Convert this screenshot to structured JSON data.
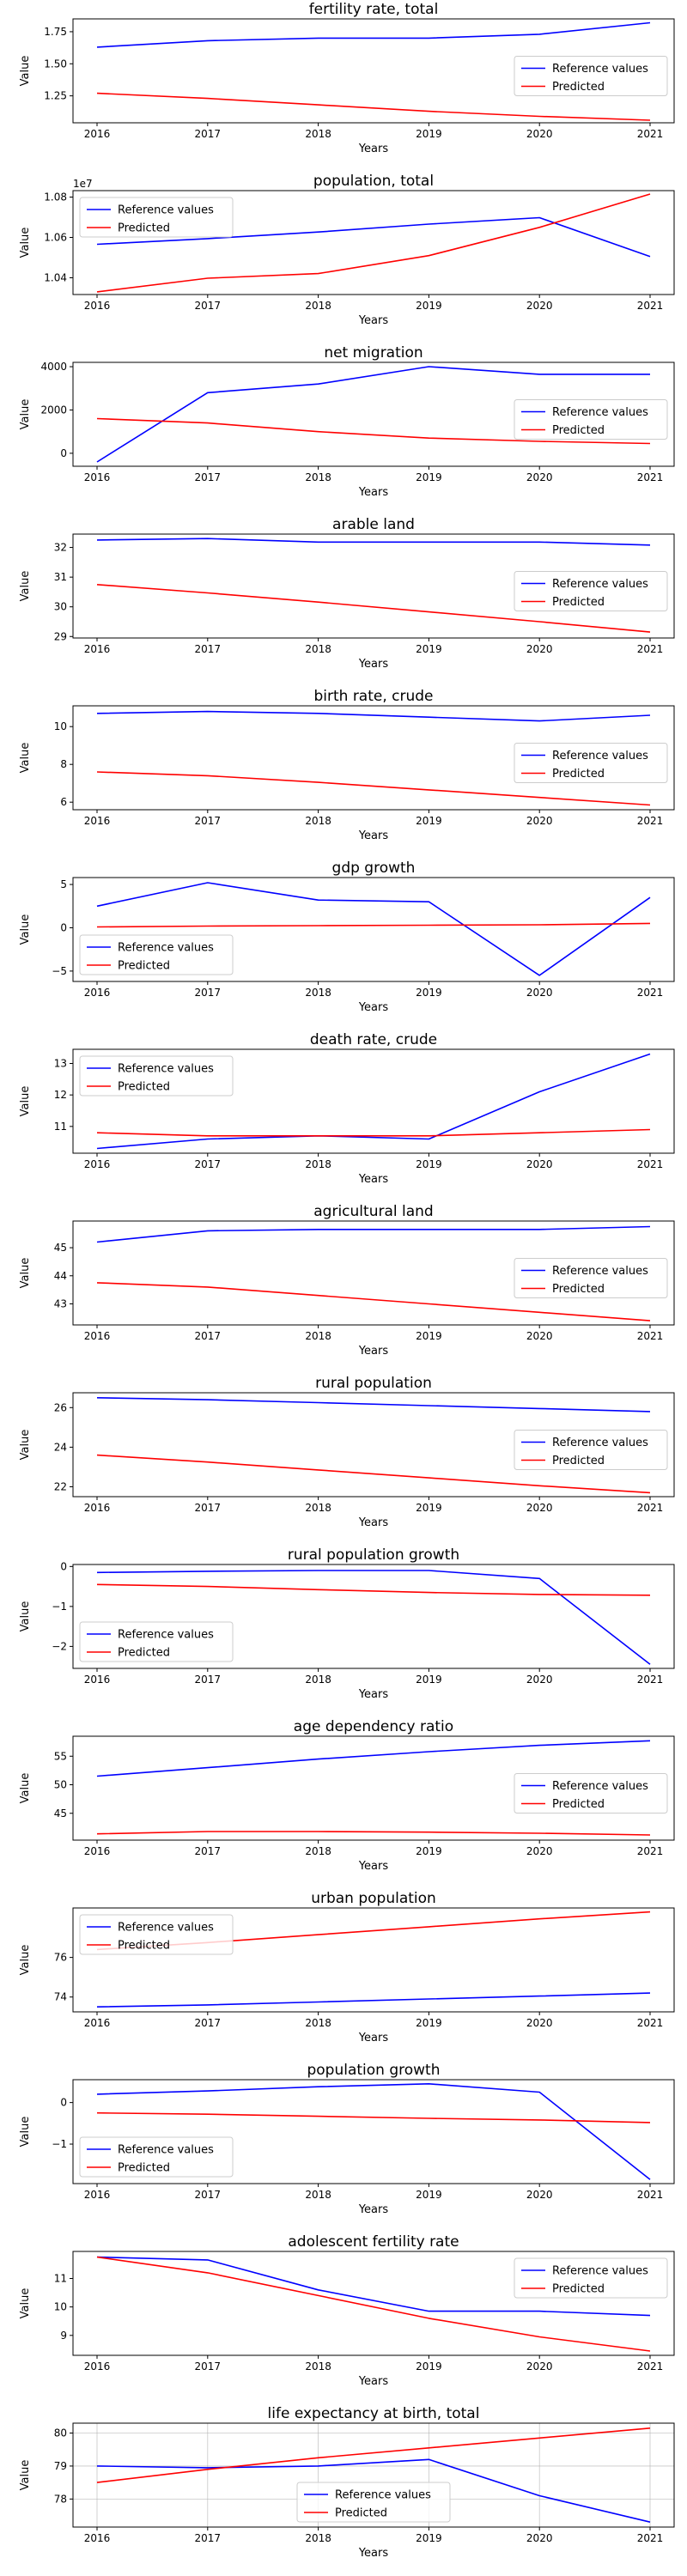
{
  "colors": {
    "reference": "#0000ff",
    "predicted": "#ff0000"
  },
  "chart_data": [
    {
      "type": "line",
      "title": "fertility rate, total",
      "xlabel": "Years",
      "ylabel": "Value",
      "x": [
        2016,
        2017,
        2018,
        2019,
        2020,
        2021
      ],
      "ylim": [
        1.04,
        1.85
      ],
      "yticks": [
        1.25,
        1.5,
        1.75
      ],
      "ytick_labels": [
        "1.25",
        "1.50",
        "1.75"
      ],
      "offset_text": "",
      "legend": "center-right",
      "grid": false,
      "series": [
        {
          "name": "Reference values",
          "color": "#0000ff",
          "values": [
            1.63,
            1.68,
            1.7,
            1.7,
            1.73,
            1.82
          ]
        },
        {
          "name": "Predicted",
          "color": "#ff0000",
          "values": [
            1.27,
            1.23,
            1.18,
            1.13,
            1.09,
            1.06
          ]
        }
      ]
    },
    {
      "type": "line",
      "title": "population, total",
      "xlabel": "Years",
      "ylabel": "Value",
      "x": [
        2016,
        2017,
        2018,
        2019,
        2020,
        2021
      ],
      "ylim": [
        10317000,
        10832000
      ],
      "yticks": [
        10400000,
        10600000,
        10800000
      ],
      "ytick_labels": [
        "1.04",
        "1.06",
        "1.08"
      ],
      "offset_text": "1e7",
      "legend": "upper-left",
      "grid": false,
      "series": [
        {
          "name": "Reference values",
          "color": "#0000ff",
          "values": [
            10566000,
            10594000,
            10627000,
            10666000,
            10698000,
            10505000
          ]
        },
        {
          "name": "Predicted",
          "color": "#ff0000",
          "values": [
            10330000,
            10398000,
            10421000,
            10510000,
            10650000,
            10815000
          ]
        }
      ]
    },
    {
      "type": "line",
      "title": "net migration",
      "xlabel": "Years",
      "ylabel": "Value",
      "x": [
        2016,
        2017,
        2018,
        2019,
        2020,
        2021
      ],
      "ylim": [
        -600,
        4200
      ],
      "yticks": [
        0,
        2000,
        4000
      ],
      "ytick_labels": [
        "0",
        "2000",
        "4000"
      ],
      "offset_text": "",
      "legend": "center-right",
      "grid": false,
      "series": [
        {
          "name": "Reference values",
          "color": "#0000ff",
          "values": [
            -400,
            2800,
            3200,
            4000,
            3650,
            3650
          ]
        },
        {
          "name": "Predicted",
          "color": "#ff0000",
          "values": [
            1600,
            1400,
            1000,
            700,
            550,
            450
          ]
        }
      ]
    },
    {
      "type": "line",
      "title": "arable land",
      "xlabel": "Years",
      "ylabel": "Value",
      "x": [
        2016,
        2017,
        2018,
        2019,
        2020,
        2021
      ],
      "ylim": [
        28.95,
        32.45
      ],
      "yticks": [
        29,
        30,
        31,
        32
      ],
      "ytick_labels": [
        "29",
        "30",
        "31",
        "32"
      ],
      "offset_text": "",
      "legend": "center-right",
      "grid": false,
      "series": [
        {
          "name": "Reference values",
          "color": "#0000ff",
          "values": [
            32.25,
            32.3,
            32.18,
            32.18,
            32.18,
            32.08
          ]
        },
        {
          "name": "Predicted",
          "color": "#ff0000",
          "values": [
            30.75,
            30.47,
            30.16,
            29.83,
            29.5,
            29.15
          ]
        }
      ]
    },
    {
      "type": "line",
      "title": "birth rate, crude",
      "xlabel": "Years",
      "ylabel": "Value",
      "x": [
        2016,
        2017,
        2018,
        2019,
        2020,
        2021
      ],
      "ylim": [
        5.6,
        11.1
      ],
      "yticks": [
        6,
        8,
        10
      ],
      "ytick_labels": [
        "6",
        "8",
        "10"
      ],
      "offset_text": "",
      "legend": "center-right",
      "grid": false,
      "series": [
        {
          "name": "Reference values",
          "color": "#0000ff",
          "values": [
            10.7,
            10.8,
            10.7,
            10.5,
            10.3,
            10.6
          ]
        },
        {
          "name": "Predicted",
          "color": "#ff0000",
          "values": [
            7.6,
            7.4,
            7.05,
            6.65,
            6.25,
            5.85
          ]
        }
      ]
    },
    {
      "type": "line",
      "title": "gdp growth",
      "xlabel": "Years",
      "ylabel": "Value",
      "x": [
        2016,
        2017,
        2018,
        2019,
        2020,
        2021
      ],
      "ylim": [
        -6.2,
        5.8
      ],
      "yticks": [
        -5,
        0,
        5
      ],
      "ytick_labels": [
        "−5",
        "0",
        "5"
      ],
      "offset_text": "",
      "legend": "lower-left",
      "grid": false,
      "series": [
        {
          "name": "Reference values",
          "color": "#0000ff",
          "values": [
            2.5,
            5.2,
            3.2,
            3.0,
            -5.5,
            3.5
          ]
        },
        {
          "name": "Predicted",
          "color": "#ff0000",
          "values": [
            0.1,
            0.2,
            0.25,
            0.3,
            0.35,
            0.5
          ]
        }
      ]
    },
    {
      "type": "line",
      "title": "death rate, crude",
      "xlabel": "Years",
      "ylabel": "Value",
      "x": [
        2016,
        2017,
        2018,
        2019,
        2020,
        2021
      ],
      "ylim": [
        10.15,
        13.45
      ],
      "yticks": [
        11,
        12,
        13
      ],
      "ytick_labels": [
        "11",
        "12",
        "13"
      ],
      "offset_text": "",
      "legend": "upper-left",
      "grid": false,
      "series": [
        {
          "name": "Reference values",
          "color": "#0000ff",
          "values": [
            10.3,
            10.6,
            10.7,
            10.6,
            12.1,
            13.3
          ]
        },
        {
          "name": "Predicted",
          "color": "#ff0000",
          "values": [
            10.8,
            10.7,
            10.7,
            10.7,
            10.8,
            10.9
          ]
        }
      ]
    },
    {
      "type": "line",
      "title": "agricultural land",
      "xlabel": "Years",
      "ylabel": "Value",
      "x": [
        2016,
        2017,
        2018,
        2019,
        2020,
        2021
      ],
      "ylim": [
        42.25,
        45.95
      ],
      "yticks": [
        43,
        44,
        45
      ],
      "ytick_labels": [
        "43",
        "44",
        "45"
      ],
      "offset_text": "",
      "legend": "center-right",
      "grid": false,
      "series": [
        {
          "name": "Reference values",
          "color": "#0000ff",
          "values": [
            45.2,
            45.6,
            45.65,
            45.65,
            45.65,
            45.75
          ]
        },
        {
          "name": "Predicted",
          "color": "#ff0000",
          "values": [
            43.75,
            43.6,
            43.3,
            43.0,
            42.7,
            42.4
          ]
        }
      ]
    },
    {
      "type": "line",
      "title": "rural population",
      "xlabel": "Years",
      "ylabel": "Value",
      "x": [
        2016,
        2017,
        2018,
        2019,
        2020,
        2021
      ],
      "ylim": [
        21.5,
        26.75
      ],
      "yticks": [
        22,
        24,
        26
      ],
      "ytick_labels": [
        "22",
        "24",
        "26"
      ],
      "offset_text": "",
      "legend": "center-right",
      "grid": false,
      "series": [
        {
          "name": "Reference values",
          "color": "#0000ff",
          "values": [
            26.5,
            26.4,
            26.25,
            26.1,
            25.95,
            25.8
          ]
        },
        {
          "name": "Predicted",
          "color": "#ff0000",
          "values": [
            23.6,
            23.25,
            22.85,
            22.45,
            22.05,
            21.7
          ]
        }
      ]
    },
    {
      "type": "line",
      "title": "rural population growth",
      "xlabel": "Years",
      "ylabel": "Value",
      "x": [
        2016,
        2017,
        2018,
        2019,
        2020,
        2021
      ],
      "ylim": [
        -2.55,
        0.05
      ],
      "yticks": [
        -2,
        -1,
        0
      ],
      "ytick_labels": [
        "−2",
        "−1",
        "0"
      ],
      "offset_text": "",
      "legend": "lower-left",
      "grid": false,
      "series": [
        {
          "name": "Reference values",
          "color": "#0000ff",
          "values": [
            -0.15,
            -0.12,
            -0.1,
            -0.1,
            -0.3,
            -2.45
          ]
        },
        {
          "name": "Predicted",
          "color": "#ff0000",
          "values": [
            -0.45,
            -0.5,
            -0.58,
            -0.65,
            -0.7,
            -0.72
          ]
        }
      ]
    },
    {
      "type": "line",
      "title": "age dependency ratio",
      "xlabel": "Years",
      "ylabel": "Value",
      "x": [
        2016,
        2017,
        2018,
        2019,
        2020,
        2021
      ],
      "ylim": [
        40.3,
        58.5
      ],
      "yticks": [
        45,
        50,
        55
      ],
      "ytick_labels": [
        "45",
        "50",
        "55"
      ],
      "offset_text": "",
      "legend": "center-right",
      "grid": false,
      "series": [
        {
          "name": "Reference values",
          "color": "#0000ff",
          "values": [
            51.5,
            53.0,
            54.5,
            55.8,
            56.9,
            57.7
          ]
        },
        {
          "name": "Predicted",
          "color": "#ff0000",
          "values": [
            41.4,
            41.8,
            41.8,
            41.7,
            41.5,
            41.2
          ]
        }
      ]
    },
    {
      "type": "line",
      "title": "urban population",
      "xlabel": "Years",
      "ylabel": "Value",
      "x": [
        2016,
        2017,
        2018,
        2019,
        2020,
        2021
      ],
      "ylim": [
        73.25,
        78.5
      ],
      "yticks": [
        74,
        76
      ],
      "ytick_labels": [
        "74",
        "76"
      ],
      "offset_text": "",
      "legend": "upper-left",
      "grid": false,
      "series": [
        {
          "name": "Reference values",
          "color": "#0000ff",
          "values": [
            73.5,
            73.6,
            73.75,
            73.9,
            74.05,
            74.2
          ]
        },
        {
          "name": "Predicted",
          "color": "#ff0000",
          "values": [
            76.4,
            76.75,
            77.15,
            77.55,
            77.95,
            78.3
          ]
        }
      ]
    },
    {
      "type": "line",
      "title": "population growth",
      "xlabel": "Years",
      "ylabel": "Value",
      "x": [
        2016,
        2017,
        2018,
        2019,
        2020,
        2021
      ],
      "ylim": [
        -1.95,
        0.55
      ],
      "yticks": [
        -1,
        0
      ],
      "ytick_labels": [
        "−1",
        "0"
      ],
      "offset_text": "",
      "legend": "lower-left",
      "grid": false,
      "series": [
        {
          "name": "Reference values",
          "color": "#0000ff",
          "values": [
            0.2,
            0.28,
            0.38,
            0.45,
            0.25,
            -1.85
          ]
        },
        {
          "name": "Predicted",
          "color": "#ff0000",
          "values": [
            -0.25,
            -0.28,
            -0.33,
            -0.38,
            -0.42,
            -0.48
          ]
        }
      ]
    },
    {
      "type": "line",
      "title": "adolescent fertility rate",
      "xlabel": "Years",
      "ylabel": "Value",
      "x": [
        2016,
        2017,
        2018,
        2019,
        2020,
        2021
      ],
      "ylim": [
        8.3,
        11.95
      ],
      "yticks": [
        9,
        10,
        11
      ],
      "ytick_labels": [
        "9",
        "10",
        "11"
      ],
      "offset_text": "",
      "legend": "upper-right",
      "grid": false,
      "series": [
        {
          "name": "Reference values",
          "color": "#0000ff",
          "values": [
            11.75,
            11.65,
            10.6,
            9.85,
            9.85,
            9.7
          ]
        },
        {
          "name": "Predicted",
          "color": "#ff0000",
          "values": [
            11.75,
            11.2,
            10.4,
            9.6,
            8.95,
            8.45
          ]
        }
      ]
    },
    {
      "type": "line",
      "title": "life expectancy at birth, total",
      "xlabel": "Years",
      "ylabel": "Value",
      "x": [
        2016,
        2017,
        2018,
        2019,
        2020,
        2021
      ],
      "ylim": [
        77.15,
        80.3
      ],
      "yticks": [
        78,
        79,
        80
      ],
      "ytick_labels": [
        "78",
        "79",
        "80"
      ],
      "offset_text": "",
      "legend": "lower-center",
      "grid": true,
      "series": [
        {
          "name": "Reference values",
          "color": "#0000ff",
          "values": [
            79.0,
            78.95,
            79.0,
            79.2,
            78.1,
            77.3
          ]
        },
        {
          "name": "Predicted",
          "color": "#ff0000",
          "values": [
            78.5,
            78.9,
            79.25,
            79.55,
            79.85,
            80.15
          ]
        }
      ]
    }
  ]
}
